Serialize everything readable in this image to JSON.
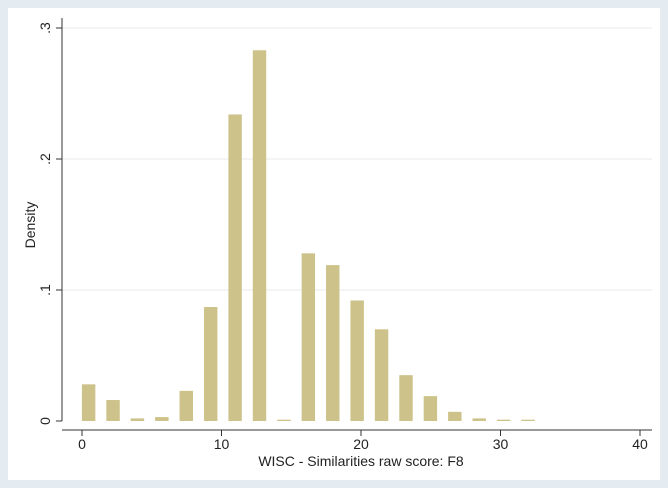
{
  "chart_data": {
    "type": "histogram",
    "xlabel": "WISC - Similarities raw score: F8",
    "ylabel": "Density",
    "bins": [
      -0.4,
      1.35,
      3.1,
      4.85,
      6.6,
      8.35,
      10.1,
      11.85,
      13.6,
      15.35,
      17.1,
      18.85,
      20.6,
      22.35,
      24.1,
      25.85,
      27.6,
      29.35,
      31.1,
      32.85
    ],
    "values": [
      0.028,
      0.016,
      0.002,
      0.003,
      0.023,
      0.087,
      0.234,
      0.283,
      0.001,
      0.128,
      0.119,
      0.092,
      0.07,
      0.035,
      0.019,
      0.007,
      0.002,
      0.001,
      0.001
    ],
    "color": "#cdc38a",
    "xlim": [
      0,
      40
    ],
    "xticks": [
      0,
      10,
      20,
      30,
      40
    ],
    "ylim": [
      0,
      0.3
    ],
    "yticks": [
      0,
      {
        "value": 0.1,
        "label": ".1"
      },
      {
        "value": 0.2,
        "label": ".2"
      },
      {
        "value": 0.3,
        "label": ".3"
      }
    ],
    "grid": true
  }
}
